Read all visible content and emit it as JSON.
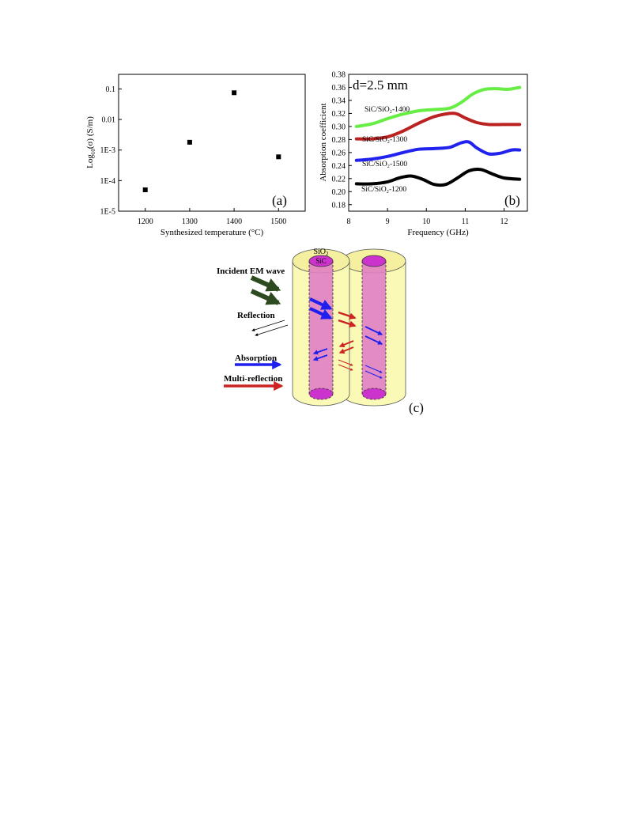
{
  "chart_data": [
    {
      "panel": "(a)",
      "type": "scatter",
      "xlabel": "Synthesized temperature",
      "xlabel_unit": "(°C)",
      "ylabel": "Log",
      "ylabel_sub": "10",
      "ylabel_rest": "(σ) (S/m)",
      "x_ticks": [
        "1200",
        "1300",
        "1400",
        "1500"
      ],
      "y_ticks": [
        "1E-5",
        "1E-4",
        "1E-3",
        "0.01",
        "0.1"
      ],
      "xlim": [
        1140,
        1560
      ],
      "ylim": [
        1e-05,
        0.3
      ],
      "yscale": "log",
      "marker_color": "#000000",
      "points": [
        {
          "x": 1200,
          "y": 5e-05
        },
        {
          "x": 1300,
          "y": 0.0018
        },
        {
          "x": 1400,
          "y": 0.075
        },
        {
          "x": 1500,
          "y": 0.0006
        }
      ]
    },
    {
      "panel": "(b)",
      "type": "line",
      "annotation": "d=2.5 mm",
      "xlabel": "Frequency (GHz)",
      "ylabel": "Absorption coefficient",
      "x_ticks": [
        "8",
        "9",
        "10",
        "11",
        "12"
      ],
      "y_ticks": [
        "0.18",
        "0.20",
        "0.22",
        "0.24",
        "0.26",
        "0.28",
        "0.30",
        "0.32",
        "0.34",
        "0.36",
        "0.38"
      ],
      "xlim": [
        8,
        12.6
      ],
      "ylim": [
        0.17,
        0.38
      ],
      "series": [
        {
          "name": "SiC/SiO₂-1400",
          "color": "#66ee44",
          "x": [
            8.2,
            8.6,
            9.0,
            9.4,
            9.8,
            10.2,
            10.6,
            10.9,
            11.2,
            11.5,
            11.8,
            12.1,
            12.4
          ],
          "y": [
            0.3,
            0.304,
            0.312,
            0.319,
            0.324,
            0.326,
            0.328,
            0.337,
            0.35,
            0.357,
            0.358,
            0.357,
            0.36
          ]
        },
        {
          "name": "SiC/SiO₂-1300",
          "color": "#bb2222",
          "x": [
            8.2,
            8.6,
            9.0,
            9.4,
            9.8,
            10.2,
            10.6,
            10.8,
            11.0,
            11.3,
            11.6,
            12.0,
            12.4
          ],
          "y": [
            0.281,
            0.281,
            0.284,
            0.293,
            0.305,
            0.315,
            0.32,
            0.319,
            0.313,
            0.306,
            0.303,
            0.303,
            0.303
          ]
        },
        {
          "name": "SiC/SiO₂-1500",
          "color": "#2222ee",
          "x": [
            8.2,
            8.6,
            9.0,
            9.4,
            9.8,
            10.2,
            10.6,
            10.9,
            11.1,
            11.3,
            11.6,
            11.9,
            12.2,
            12.4
          ],
          "y": [
            0.248,
            0.25,
            0.254,
            0.26,
            0.265,
            0.266,
            0.268,
            0.275,
            0.276,
            0.267,
            0.258,
            0.259,
            0.264,
            0.264
          ]
        },
        {
          "name": "SiC/SiO₂-1200",
          "color": "#000000",
          "x": [
            8.2,
            8.6,
            9.0,
            9.3,
            9.6,
            9.9,
            10.2,
            10.5,
            10.8,
            11.1,
            11.4,
            11.7,
            12.0,
            12.4
          ],
          "y": [
            0.212,
            0.212,
            0.215,
            0.221,
            0.224,
            0.219,
            0.211,
            0.211,
            0.221,
            0.232,
            0.234,
            0.227,
            0.221,
            0.219
          ]
        }
      ]
    }
  ],
  "schematic": {
    "panel": "(c)",
    "layer_outer": "SiO",
    "layer_outer_sub": "2",
    "layer_inner": "SiC",
    "legend": {
      "incident": "Incident EM wave",
      "reflection": "Reflection",
      "absorption": "Absorption",
      "multi_reflection": "Multi-reflection"
    },
    "colors": {
      "shell": "#fafab6",
      "core": "#e07fc4",
      "core_top": "#cc33cc",
      "incident": "#2e4a20",
      "absorption": "#2020ee",
      "multi_reflection": "#cc2222"
    }
  }
}
